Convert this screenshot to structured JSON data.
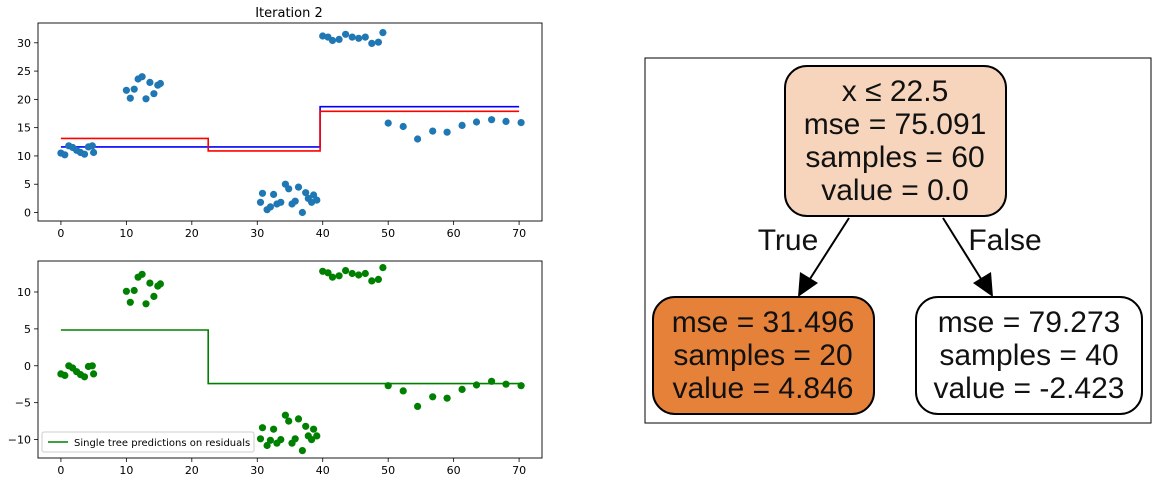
{
  "chart_data": [
    {
      "type": "scatter",
      "title": "Iteration 2",
      "xlabel": "",
      "ylabel": "",
      "xlim": [
        -3.5,
        73.5
      ],
      "ylim": [
        -1.5,
        33.5
      ],
      "xticks": [
        0,
        10,
        20,
        30,
        40,
        50,
        60,
        70
      ],
      "yticks": [
        0,
        5,
        10,
        15,
        20,
        25,
        30
      ],
      "grid": false,
      "series": [
        {
          "kind": "points",
          "color": "#1f77b4",
          "points": [
            [
              0,
              10.5
            ],
            [
              0.6,
              10.2
            ],
            [
              1.2,
              11.8
            ],
            [
              1.8,
              11.5
            ],
            [
              2.4,
              11.0
            ],
            [
              3.0,
              10.6
            ],
            [
              3.6,
              10.3
            ],
            [
              4.2,
              11.6
            ],
            [
              4.8,
              11.8
            ],
            [
              5.0,
              10.6
            ],
            [
              10.0,
              21.6
            ],
            [
              10.6,
              20.2
            ],
            [
              11.2,
              21.8
            ],
            [
              11.8,
              23.6
            ],
            [
              12.4,
              24.0
            ],
            [
              13.0,
              20.1
            ],
            [
              13.6,
              23.0
            ],
            [
              14.2,
              21.0
            ],
            [
              14.8,
              22.5
            ],
            [
              15.2,
              22.8
            ],
            [
              30.5,
              1.8
            ],
            [
              30.8,
              3.4
            ],
            [
              31.5,
              0.5
            ],
            [
              32.0,
              1.0
            ],
            [
              32.5,
              3.2
            ],
            [
              33.0,
              1.5
            ],
            [
              33.6,
              1.8
            ],
            [
              34.3,
              5.0
            ],
            [
              34.8,
              4.2
            ],
            [
              35.3,
              1.5
            ],
            [
              35.8,
              2.0
            ],
            [
              36.3,
              4.5
            ],
            [
              36.9,
              0.0
            ],
            [
              37.4,
              3.5
            ],
            [
              37.8,
              2.5
            ],
            [
              38.3,
              1.8
            ],
            [
              38.6,
              3.1
            ],
            [
              39.1,
              2.2
            ],
            [
              40.0,
              31.2
            ],
            [
              40.8,
              31.0
            ],
            [
              41.5,
              30.4
            ],
            [
              42.5,
              30.6
            ],
            [
              43.5,
              31.5
            ],
            [
              44.5,
              31.0
            ],
            [
              45.5,
              30.8
            ],
            [
              46.5,
              31.0
            ],
            [
              47.5,
              29.9
            ],
            [
              48.5,
              30.1
            ],
            [
              49.2,
              31.8
            ],
            [
              50.0,
              15.8
            ],
            [
              52.3,
              15.2
            ],
            [
              54.5,
              13.0
            ],
            [
              56.8,
              14.4
            ],
            [
              59.0,
              14.2
            ],
            [
              61.3,
              15.4
            ],
            [
              63.5,
              16.0
            ],
            [
              65.8,
              16.4
            ],
            [
              68.0,
              16.1
            ],
            [
              70.3,
              15.9
            ]
          ]
        },
        {
          "kind": "step",
          "color": "#0000ff",
          "x": [
            0,
            39.6,
            39.6,
            70
          ],
          "y": [
            11.6,
            11.6,
            18.7,
            18.7
          ]
        },
        {
          "kind": "step",
          "color": "#ff0000",
          "x": [
            0,
            22.5,
            22.5,
            39.6,
            39.6,
            70
          ],
          "y": [
            13.1,
            13.1,
            10.9,
            10.9,
            17.9,
            17.9
          ]
        }
      ]
    },
    {
      "type": "scatter",
      "title": "",
      "xlabel": "",
      "ylabel": "",
      "xlim": [
        -3.5,
        73.5
      ],
      "ylim": [
        -12.5,
        14.2
      ],
      "xticks": [
        0,
        10,
        20,
        30,
        40,
        50,
        60,
        70
      ],
      "yticks": [
        -10,
        -5,
        0,
        5,
        10
      ],
      "grid": false,
      "legend": {
        "placement": "lower-left",
        "entries": [
          "Single tree predictions on residuals"
        ]
      },
      "series": [
        {
          "kind": "points",
          "color": "#008000",
          "points": [
            [
              0,
              -1.1
            ],
            [
              0.6,
              -1.3
            ],
            [
              1.2,
              0.0
            ],
            [
              1.8,
              -0.3
            ],
            [
              2.4,
              -0.8
            ],
            [
              3.0,
              -1.2
            ],
            [
              3.6,
              -1.5
            ],
            [
              4.2,
              -0.1
            ],
            [
              4.8,
              0.0
            ],
            [
              5.0,
              -1.1
            ],
            [
              10.0,
              10.1
            ],
            [
              10.6,
              8.6
            ],
            [
              11.2,
              10.2
            ],
            [
              11.8,
              12.0
            ],
            [
              12.4,
              12.4
            ],
            [
              13.0,
              8.4
            ],
            [
              13.6,
              11.2
            ],
            [
              14.2,
              9.4
            ],
            [
              14.8,
              10.8
            ],
            [
              15.2,
              11.1
            ],
            [
              30.5,
              -9.9
            ],
            [
              30.8,
              -8.4
            ],
            [
              31.5,
              -10.8
            ],
            [
              32.0,
              -10.1
            ],
            [
              32.5,
              -8.6
            ],
            [
              33.0,
              -10.5
            ],
            [
              33.6,
              -10.0
            ],
            [
              34.3,
              -6.7
            ],
            [
              34.8,
              -7.5
            ],
            [
              35.3,
              -10.5
            ],
            [
              35.8,
              -9.9
            ],
            [
              36.3,
              -7.2
            ],
            [
              36.9,
              -11.5
            ],
            [
              37.4,
              -8.2
            ],
            [
              37.8,
              -9.5
            ],
            [
              38.3,
              -10.0
            ],
            [
              38.6,
              -8.6
            ],
            [
              39.1,
              -9.5
            ],
            [
              40.0,
              12.8
            ],
            [
              40.8,
              12.6
            ],
            [
              41.5,
              12.0
            ],
            [
              42.5,
              12.2
            ],
            [
              43.5,
              12.9
            ],
            [
              44.5,
              12.5
            ],
            [
              45.5,
              12.3
            ],
            [
              46.5,
              12.5
            ],
            [
              47.5,
              11.5
            ],
            [
              48.5,
              11.7
            ],
            [
              49.2,
              13.3
            ],
            [
              50.0,
              -2.7
            ],
            [
              52.3,
              -3.4
            ],
            [
              54.5,
              -5.5
            ],
            [
              56.8,
              -4.2
            ],
            [
              59.0,
              -4.4
            ],
            [
              61.3,
              -3.2
            ],
            [
              63.5,
              -2.6
            ],
            [
              65.8,
              -2.1
            ],
            [
              68.0,
              -2.5
            ],
            [
              70.3,
              -2.7
            ]
          ]
        },
        {
          "kind": "step",
          "name": "Single tree predictions on residuals",
          "color": "#008000",
          "x": [
            0,
            22.5,
            22.5,
            70
          ],
          "y": [
            4.85,
            4.85,
            -2.42,
            -2.42
          ]
        }
      ]
    }
  ],
  "tree": {
    "root": {
      "lines": [
        "x ≤ 22.5",
        "mse = 75.091",
        "samples = 60",
        "value = 0.0"
      ],
      "fill": "#f6d5bc"
    },
    "left": {
      "lines": [
        "mse = 31.496",
        "samples = 20",
        "value = 4.846"
      ],
      "fill": "#e58139"
    },
    "right": {
      "lines": [
        "mse = 79.273",
        "samples = 40",
        "value = -2.423"
      ],
      "fill": "#ffffff"
    },
    "edge_true": "True",
    "edge_false": "False"
  }
}
